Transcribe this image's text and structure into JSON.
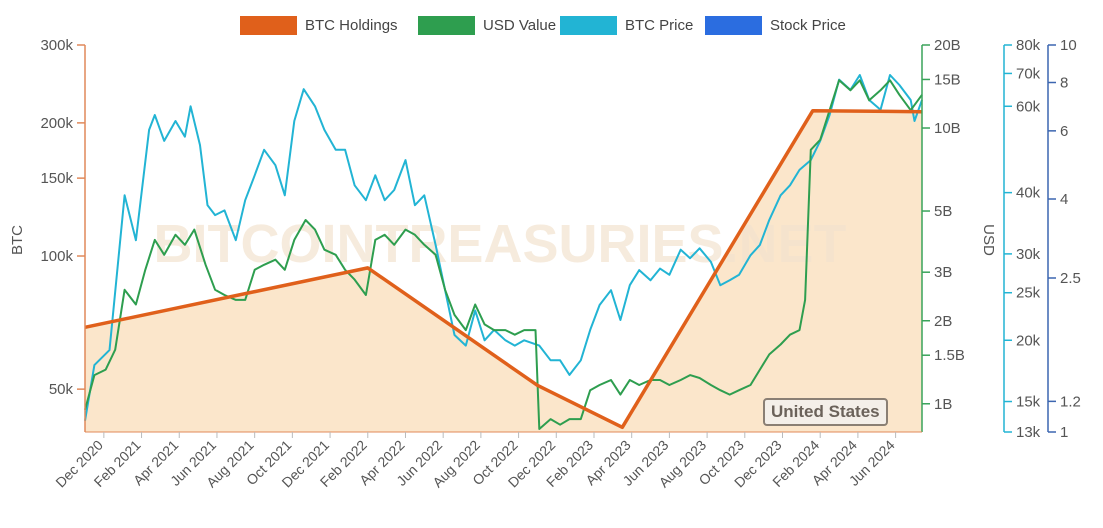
{
  "legend": [
    {
      "label": "BTC Holdings",
      "color": "#e0601b"
    },
    {
      "label": "USD Value",
      "color": "#2e9e4f"
    },
    {
      "label": "BTC Price",
      "color": "#22b4d4"
    },
    {
      "label": "Stock Price",
      "color": "#2b6de0"
    }
  ],
  "badge": "United States",
  "watermark": "BITCOINTREASURIES.NET",
  "chart_data": {
    "type": "line",
    "x_unit": "months since 2020-11-01",
    "x_tick_labels": [
      "Dec 2020",
      "Feb 2021",
      "Apr 2021",
      "Jun 2021",
      "Aug 2021",
      "Oct 2021",
      "Dec 2021",
      "Feb 2022",
      "Apr 2022",
      "Jun 2022",
      "Aug 2022",
      "Oct 2022",
      "Dec 2022",
      "Feb 2023",
      "Apr 2023",
      "Jun 2023",
      "Aug 2023",
      "Oct 2023",
      "Dec 2023",
      "Feb 2024",
      "Apr 2024",
      "Jun 2024"
    ],
    "xlim": [
      0,
      44.4
    ],
    "axes": {
      "btc": {
        "label": "BTC",
        "scale": "log",
        "range": [
          40000,
          300000
        ],
        "ticks": [
          "300k",
          "200k",
          "150k",
          "100k",
          "50k"
        ],
        "tick_values": [
          300000,
          200000,
          150000,
          100000,
          50000
        ]
      },
      "usd": {
        "label": "USD",
        "scale": "log",
        "range": [
          0.79,
          20
        ],
        "unit": "B",
        "ticks": [
          "20B",
          "15B",
          "10B",
          "5B",
          "3B",
          "2B",
          "1.5B",
          "1B"
        ],
        "tick_values": [
          20,
          15,
          10,
          5,
          3,
          2,
          1.5,
          1
        ]
      },
      "price": {
        "scale": "log",
        "range": [
          13000,
          80000
        ],
        "ticks": [
          "80k",
          "70k",
          "60k",
          "40k",
          "30k",
          "25k",
          "20k",
          "15k",
          "13k"
        ],
        "tick_values": [
          80000,
          70000,
          60000,
          40000,
          30000,
          25000,
          20000,
          15000,
          13000
        ]
      },
      "stock": {
        "scale": "log",
        "range": [
          1,
          10
        ],
        "ticks": [
          "10",
          "8",
          "6",
          "4",
          "2.5",
          "1.2",
          "1"
        ],
        "tick_values": [
          10,
          8,
          6,
          4,
          2.5,
          1.2,
          1
        ]
      }
    },
    "series": [
      {
        "name": "BTC Holdings",
        "axis": "btc",
        "area": true,
        "x": [
          0,
          15,
          24,
          28.5,
          38.6,
          44.4
        ],
        "values": [
          69000,
          94000,
          51000,
          41000,
          213000,
          212000
        ]
      },
      {
        "name": "USD Value",
        "axis": "usd",
        "x": [
          0,
          0.5,
          1.1,
          1.6,
          2.1,
          2.7,
          3.2,
          3.7,
          4.2,
          4.8,
          5.3,
          5.8,
          6.4,
          6.9,
          7.4,
          8.0,
          8.5,
          9.0,
          9.5,
          10.1,
          10.6,
          11.1,
          11.7,
          12.2,
          12.7,
          13.3,
          13.8,
          14.3,
          14.9,
          15.4,
          15.9,
          16.4,
          17.0,
          17.5,
          18.0,
          18.6,
          19.1,
          19.6,
          20.2,
          20.7,
          21.2,
          21.7,
          22.3,
          22.8,
          23.3,
          23.9,
          24.1,
          24.7,
          25.2,
          25.7,
          26.3,
          26.8,
          27.3,
          27.9,
          28.4,
          28.9,
          29.4,
          30.0,
          30.5,
          31.0,
          31.6,
          32.1,
          32.6,
          33.2,
          33.7,
          34.2,
          34.7,
          35.3,
          35.8,
          36.3,
          36.9,
          37.4,
          37.9,
          38.2,
          38.5,
          39.0,
          39.5,
          40.0,
          40.6,
          41.1,
          41.6,
          42.2,
          42.7,
          43.2,
          43.8,
          44.4
        ],
        "values": [
          0.95,
          1.27,
          1.33,
          1.57,
          2.59,
          2.29,
          3.06,
          3.93,
          3.47,
          4.1,
          3.77,
          4.28,
          3.19,
          2.59,
          2.48,
          2.38,
          2.38,
          3.06,
          3.19,
          3.33,
          3.06,
          3.93,
          4.64,
          4.28,
          3.62,
          3.47,
          3.06,
          2.82,
          2.48,
          3.93,
          4.1,
          3.77,
          4.28,
          4.1,
          3.77,
          3.47,
          2.59,
          2.1,
          1.85,
          2.29,
          1.94,
          1.85,
          1.85,
          1.78,
          1.85,
          1.85,
          0.81,
          0.88,
          0.84,
          0.88,
          0.88,
          1.12,
          1.17,
          1.22,
          1.08,
          1.22,
          1.17,
          1.22,
          1.22,
          1.17,
          1.22,
          1.27,
          1.24,
          1.17,
          1.12,
          1.08,
          1.12,
          1.17,
          1.33,
          1.51,
          1.64,
          1.78,
          1.85,
          2.38,
          8.34,
          9.06,
          11.6,
          14.9,
          13.7,
          14.9,
          12.6,
          13.7,
          14.9,
          13.2,
          11.6,
          13.2
        ]
      },
      {
        "name": "BTC Price",
        "axis": "price",
        "x": [
          0,
          0.5,
          1.3,
          2.1,
          2.7,
          3.4,
          3.7,
          4.2,
          4.8,
          5.3,
          5.6,
          6.1,
          6.5,
          6.9,
          7.4,
          8.0,
          8.5,
          9.0,
          9.5,
          10.1,
          10.6,
          11.1,
          11.6,
          12.2,
          12.7,
          13.3,
          13.8,
          14.3,
          14.9,
          15.4,
          15.9,
          16.4,
          17.0,
          17.5,
          18.0,
          18.6,
          19.1,
          19.6,
          20.2,
          20.7,
          21.2,
          21.7,
          22.3,
          22.8,
          23.3,
          24.1,
          24.7,
          25.2,
          25.7,
          26.3,
          26.8,
          27.3,
          27.9,
          28.4,
          28.9,
          29.4,
          30.0,
          30.5,
          31.0,
          31.6,
          32.1,
          32.6,
          33.2,
          33.7,
          34.2,
          34.7,
          35.3,
          35.8,
          36.3,
          36.9,
          37.4,
          37.9,
          38.5,
          39.0,
          39.5,
          40.0,
          40.6,
          41.1,
          41.6,
          42.2,
          42.7,
          43.2,
          43.8,
          44.0,
          44.4
        ],
        "values": [
          13700,
          17800,
          19100,
          39500,
          32000,
          53700,
          57600,
          51000,
          56000,
          52000,
          60000,
          50000,
          37700,
          36000,
          36800,
          32000,
          38600,
          43400,
          48900,
          45500,
          39500,
          56000,
          65000,
          60000,
          53700,
          48900,
          48900,
          41400,
          38600,
          43400,
          38600,
          40500,
          46600,
          37700,
          39500,
          31300,
          25300,
          20500,
          19500,
          23000,
          20000,
          21000,
          20000,
          19500,
          20000,
          19500,
          18200,
          18200,
          17000,
          18200,
          21000,
          23600,
          25300,
          22000,
          25900,
          27800,
          26500,
          28000,
          27200,
          30600,
          29400,
          30800,
          28900,
          25900,
          26500,
          27200,
          29800,
          31300,
          35200,
          39500,
          41400,
          44500,
          46600,
          51000,
          57600,
          68000,
          64800,
          69500,
          61800,
          59000,
          69500,
          66300,
          61800,
          56000,
          61800
        ]
      },
      {
        "name": "Stock Price",
        "axis": "stock",
        "x": [],
        "values": []
      }
    ]
  }
}
